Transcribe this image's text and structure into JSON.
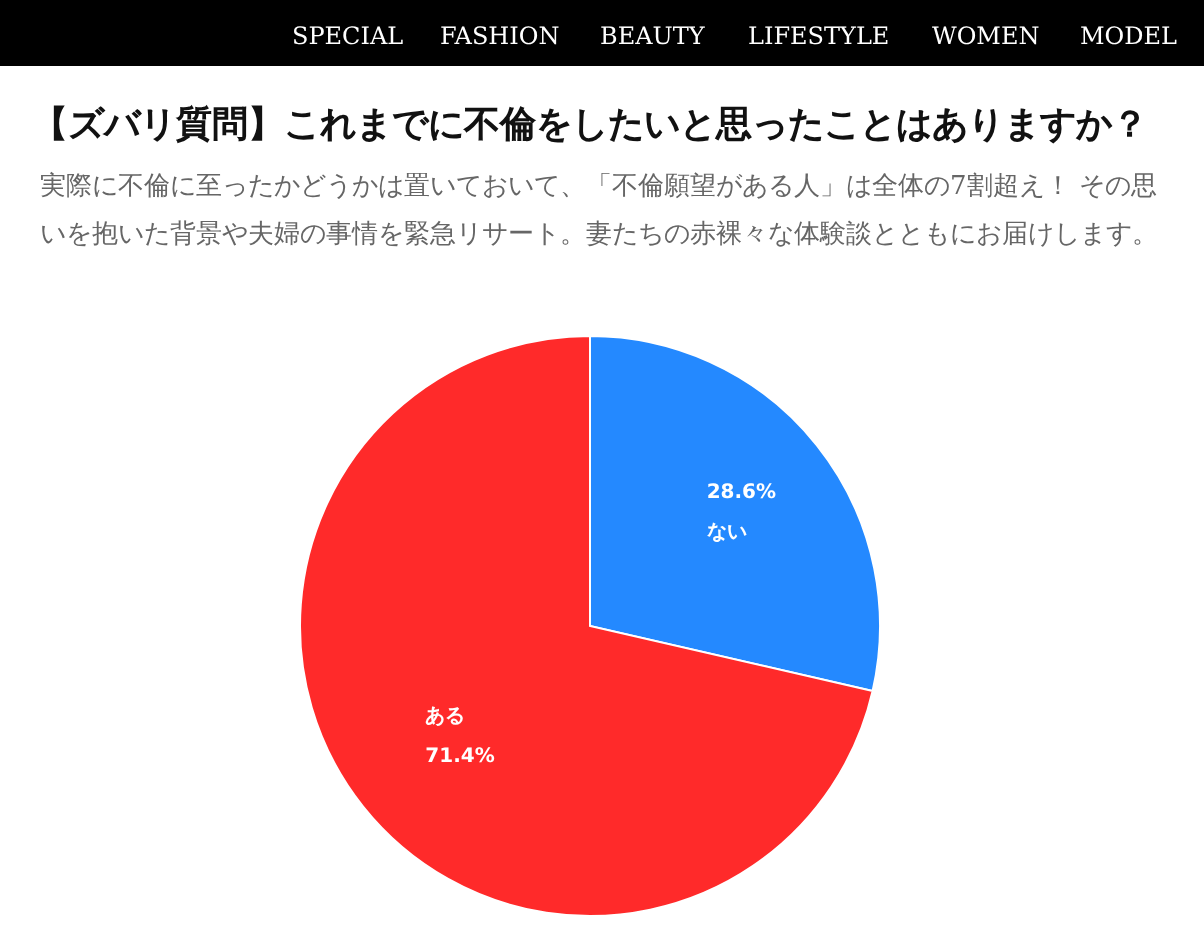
{
  "chart_data": {
    "type": "pie",
    "title": "【ズバリ質問】これまでに不倫をしたいと思ったことはありますか？",
    "subtitle": "実際に不倫に至ったかどうかは置いておいて、「不倫願望がある人」は全体の7割超え！ その思いを抱いた背景や夫婦の事情を緊急リサート。妻たちの赤裸々な体験談とともにお届けします。",
    "annotations": [
      "SPECIAL",
      "FASHION",
      "BEAUTY",
      "LIFESTYLE",
      "WOMEN",
      "MODEL"
    ],
    "categories": [
      "ない",
      "ある"
    ],
    "values": [
      28.6,
      71.4
    ],
    "colors": [
      "#2489ff",
      "#ff2a2a"
    ],
    "value_labels": [
      "28.6%",
      "71.4%"
    ]
  }
}
